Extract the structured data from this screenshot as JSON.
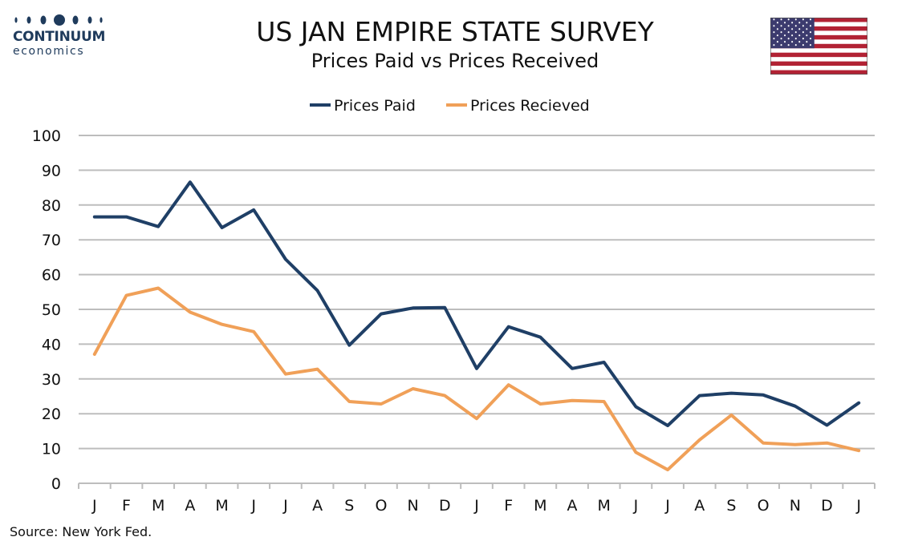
{
  "logo": {
    "name": "CONTINUUM",
    "sub": "economics"
  },
  "title": "US JAN EMPIRE STATE SURVEY",
  "subtitle": "Prices Paid vs Prices Received",
  "source": "Source: New York Fed.",
  "chart_data": {
    "type": "line",
    "categories": [
      "J",
      "F",
      "M",
      "A",
      "M",
      "J",
      "J",
      "A",
      "S",
      "O",
      "N",
      "D",
      "J",
      "F",
      "M",
      "A",
      "M",
      "J",
      "J",
      "A",
      "S",
      "O",
      "N",
      "D",
      "J"
    ],
    "ylim": [
      0,
      100
    ],
    "yticks": [
      0,
      10,
      20,
      30,
      40,
      50,
      60,
      70,
      80,
      90,
      100
    ],
    "grid": true,
    "legend_position": "top-center",
    "series": [
      {
        "name": "Prices Paid",
        "color": "#1f3f66",
        "values": [
          76.6,
          76.6,
          73.8,
          86.6,
          73.5,
          78.6,
          64.4,
          55.4,
          39.7,
          48.7,
          50.4,
          50.5,
          33.0,
          45.0,
          42.0,
          33.0,
          34.8,
          22.0,
          16.6,
          25.2,
          25.9,
          25.4,
          22.2,
          16.7,
          23.1
        ]
      },
      {
        "name": "Prices Recieved",
        "color": "#f0a058",
        "values": [
          37.1,
          54.0,
          56.1,
          49.2,
          45.7,
          43.6,
          31.4,
          32.8,
          23.5,
          22.8,
          27.2,
          25.2,
          18.6,
          28.3,
          22.8,
          23.8,
          23.5,
          8.9,
          3.9,
          12.5,
          19.6,
          11.6,
          11.1,
          11.6,
          9.4
        ]
      }
    ]
  },
  "flag_icon": "us-flag-icon"
}
